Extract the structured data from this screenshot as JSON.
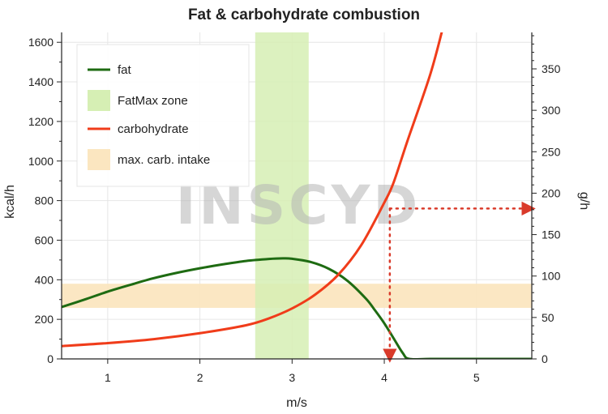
{
  "chart_data": {
    "type": "line",
    "title": "Fat & carbohydrate combustion",
    "xlabel": "m/s",
    "ylabel": "kcal/h",
    "y2label": "g/h",
    "xlim": [
      0.5,
      5.6
    ],
    "ylim": [
      0,
      1650
    ],
    "y2lim": [
      0,
      394
    ],
    "x_ticks": [
      1,
      2,
      3,
      4,
      5
    ],
    "y_ticks": [
      0,
      200,
      400,
      600,
      800,
      1000,
      1200,
      1400,
      1600
    ],
    "y2_ticks": [
      0,
      50,
      100,
      150,
      200,
      250,
      300,
      350
    ],
    "grid": true,
    "legend_position": "top-left",
    "series": [
      {
        "name": "fat",
        "color": "#1e6b12",
        "x": [
          0.5,
          0.75,
          1.0,
          1.25,
          1.5,
          1.75,
          2.0,
          2.25,
          2.5,
          2.75,
          2.9,
          3.0,
          3.2,
          3.4,
          3.6,
          3.8,
          3.9,
          4.0,
          4.1,
          4.2,
          4.27,
          4.5,
          5.0,
          5.6
        ],
        "y": [
          262,
          300,
          340,
          375,
          408,
          435,
          458,
          478,
          495,
          505,
          508,
          506,
          490,
          455,
          395,
          305,
          245,
          180,
          105,
          30,
          0,
          0,
          0,
          0
        ]
      },
      {
        "name": "carbohydrate",
        "color": "#f03c1a",
        "x": [
          0.5,
          1.0,
          1.5,
          2.0,
          2.5,
          2.75,
          3.0,
          3.25,
          3.5,
          3.75,
          4.0,
          4.1,
          4.25,
          4.5,
          4.65
        ],
        "y": [
          65,
          80,
          100,
          130,
          170,
          205,
          255,
          325,
          425,
          575,
          790,
          890,
          1100,
          1440,
          1700
        ]
      }
    ],
    "bands": [
      {
        "name": "FatMax zone",
        "color": "#d6efb4",
        "x_range": [
          2.6,
          3.18
        ]
      },
      {
        "name": "max. carb. intake",
        "color": "#fbe6c0",
        "y_range": [
          258,
          380
        ]
      }
    ],
    "annotation_arrows": {
      "color": "#d93a2a",
      "vertical": {
        "x": 4.06,
        "y_from": 760,
        "y_to": 0
      },
      "horizontal": {
        "y": 760,
        "x_from": 4.06,
        "x_to": 5.6
      }
    },
    "watermark": "INSCYD"
  }
}
